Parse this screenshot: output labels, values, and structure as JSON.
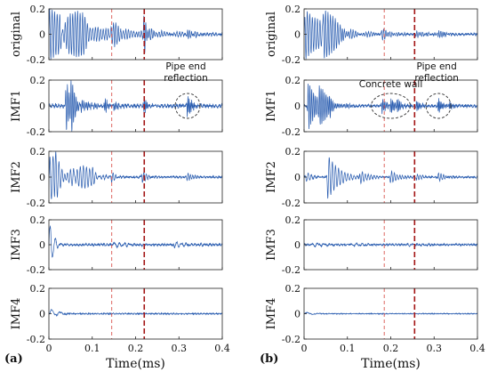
{
  "chart_data": [
    {
      "type": "line",
      "panel_label": "(a)",
      "xlabel": "Time(ms)",
      "xlim": [
        0,
        0.4
      ],
      "x_ticks": [
        "0",
        "0.1",
        "0.2",
        "0.3",
        "0.4"
      ],
      "vlines": [
        {
          "x": 0.145,
          "color": "#d9534f",
          "style": "dash-thin"
        },
        {
          "x": 0.22,
          "color": "#a31515",
          "style": "dash-thick"
        }
      ],
      "annotations": [
        {
          "subplot": 1,
          "text": [
            "Pipe end",
            "reflection"
          ],
          "ellipse_center": [
            0.32,
            0.0
          ]
        }
      ],
      "subplots": [
        {
          "ylabel": "original",
          "ylim": [
            -0.2,
            0.2
          ],
          "y_ticks": [
            "0.2",
            "0",
            "-0.2"
          ],
          "bursts": [
            [
              0.002,
              0.2,
              0.1
            ],
            [
              0.03,
              0.14,
              0.06
            ],
            [
              0.08,
              0.045,
              0.03
            ],
            [
              0.14,
              0.045,
              0.02
            ],
            [
              0.22,
              0.16,
              0.008
            ],
            [
              0.32,
              0.035,
              0.015
            ]
          ],
          "baseline": 0.015,
          "freq": 170
        },
        {
          "ylabel": "IMF1",
          "ylim": [
            -0.2,
            0.2
          ],
          "y_ticks": [
            "0.2",
            "0",
            "-0.2"
          ],
          "bursts": [
            [
              0.04,
              0.19,
              0.012
            ],
            [
              0.052,
              0.16,
              0.01
            ],
            [
              0.075,
              0.05,
              0.02
            ],
            [
              0.13,
              0.06,
              0.008
            ],
            [
              0.15,
              0.04,
              0.008
            ],
            [
              0.22,
              0.065,
              0.006
            ],
            [
              0.32,
              0.085,
              0.01
            ]
          ],
          "baseline": 0.02,
          "freq": 240
        },
        {
          "ylabel": "IMF2",
          "ylim": [
            -0.2,
            0.2
          ],
          "y_ticks": [
            "0.2",
            "0",
            "-0.2"
          ],
          "bursts": [
            [
              0.003,
              0.18,
              0.05
            ],
            [
              0.015,
              0.19,
              0.04
            ],
            [
              0.06,
              0.06,
              0.02
            ],
            [
              0.1,
              0.035,
              0.02
            ],
            [
              0.145,
              0.04,
              0.01
            ],
            [
              0.215,
              0.05,
              0.01
            ],
            [
              0.32,
              0.035,
              0.012
            ]
          ],
          "baseline": 0.01,
          "freq": 130
        },
        {
          "ylabel": "IMF3",
          "ylim": [
            -0.2,
            0.2
          ],
          "y_ticks": [
            "0.2",
            "0",
            "-0.2"
          ],
          "bursts": [
            [
              0.0,
              0.2,
              0.008
            ],
            [
              0.006,
              0.08,
              0.01
            ],
            [
              0.15,
              0.02,
              0.03
            ],
            [
              0.29,
              0.02,
              0.03
            ]
          ],
          "baseline": 0.012,
          "freq": 75
        },
        {
          "ylabel": "IMF4",
          "ylim": [
            -0.2,
            0.2
          ],
          "y_ticks": [
            "0.2",
            "0",
            "-0.2"
          ],
          "bursts": [
            [
              0.005,
              0.035,
              0.01
            ],
            [
              0.02,
              0.02,
              0.01
            ]
          ],
          "baseline": 0.006,
          "freq": 40
        }
      ]
    },
    {
      "type": "line",
      "panel_label": "(b)",
      "xlabel": "Time(ms)",
      "xlim": [
        0,
        0.4
      ],
      "x_ticks": [
        "0",
        "0.1",
        "0.2",
        "0.3",
        "0.4"
      ],
      "vlines": [
        {
          "x": 0.185,
          "color": "#d9534f",
          "style": "dash-thin"
        },
        {
          "x": 0.255,
          "color": "#a31515",
          "style": "dash-thick"
        }
      ],
      "annotations": [
        {
          "subplot": 1,
          "text": [
            "Concrete wall"
          ],
          "ellipse_center": [
            0.2,
            0.0
          ]
        },
        {
          "subplot": 1,
          "text": [
            "Pipe end",
            "reflection"
          ],
          "ellipse_center": [
            0.31,
            0.0
          ]
        }
      ],
      "subplots": [
        {
          "ylabel": "original",
          "ylim": [
            -0.2,
            0.2
          ],
          "y_ticks": [
            "0.2",
            "0",
            "-0.2"
          ],
          "bursts": [
            [
              0.003,
              0.2,
              0.05
            ],
            [
              0.045,
              0.2,
              0.025
            ],
            [
              0.09,
              0.07,
              0.02
            ],
            [
              0.18,
              0.04,
              0.02
            ],
            [
              0.26,
              0.025,
              0.02
            ],
            [
              0.31,
              0.03,
              0.015
            ]
          ],
          "baseline": 0.012,
          "freq": 170
        },
        {
          "ylabel": "IMF1",
          "ylim": [
            -0.2,
            0.2
          ],
          "y_ticks": [
            "0.2",
            "0",
            "-0.2"
          ],
          "bursts": [
            [
              0.01,
              0.19,
              0.02
            ],
            [
              0.035,
              0.15,
              0.02
            ],
            [
              0.06,
              0.06,
              0.02
            ],
            [
              0.18,
              0.06,
              0.01
            ],
            [
              0.2,
              0.07,
              0.01
            ],
            [
              0.215,
              0.05,
              0.008
            ],
            [
              0.26,
              0.04,
              0.008
            ],
            [
              0.31,
              0.06,
              0.008
            ],
            [
              0.335,
              0.03,
              0.01
            ]
          ],
          "baseline": 0.015,
          "freq": 240
        },
        {
          "ylabel": "IMF2",
          "ylim": [
            -0.2,
            0.2
          ],
          "y_ticks": [
            "0.2",
            "0",
            "-0.2"
          ],
          "bursts": [
            [
              0.005,
              0.03,
              0.02
            ],
            [
              0.055,
              0.17,
              0.025
            ],
            [
              0.13,
              0.05,
              0.02
            ],
            [
              0.2,
              0.05,
              0.02
            ],
            [
              0.26,
              0.03,
              0.01
            ],
            [
              0.31,
              0.03,
              0.015
            ]
          ],
          "baseline": 0.01,
          "freq": 130
        },
        {
          "ylabel": "IMF3",
          "ylim": [
            -0.2,
            0.2
          ],
          "y_ticks": [
            "0.2",
            "0",
            "-0.2"
          ],
          "bursts": [
            [
              0.02,
              0.015,
              0.03
            ],
            [
              0.11,
              0.012,
              0.03
            ],
            [
              0.24,
              0.01,
              0.03
            ]
          ],
          "baseline": 0.01,
          "freq": 70
        },
        {
          "ylabel": "IMF4",
          "ylim": [
            -0.2,
            0.2
          ],
          "y_ticks": [
            "0.2",
            "0",
            "-0.2"
          ],
          "bursts": [
            [
              0.005,
              0.01,
              0.02
            ]
          ],
          "baseline": 0.004,
          "freq": 35
        }
      ]
    }
  ]
}
